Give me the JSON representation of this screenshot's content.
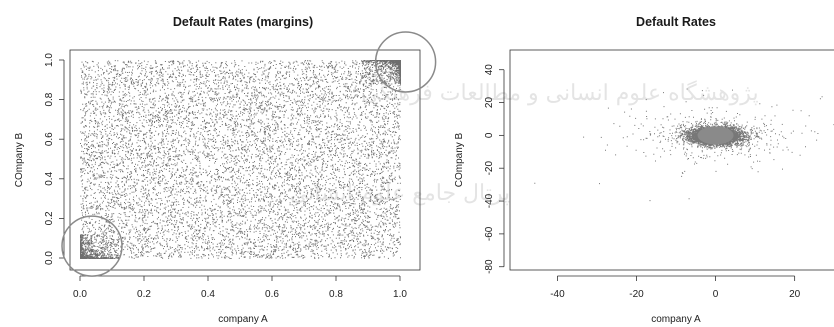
{
  "watermark": {
    "lines": [
      "پژوهشگاه علوم انسانی و مطالعات فرهنگی",
      "پرتال جامع علوم انسانی"
    ]
  },
  "chart_data": [
    {
      "type": "scatter",
      "title": "Default Rates (margins)",
      "xlabel": "company A",
      "ylabel": "COmpany B",
      "xlim": [
        0.0,
        1.0
      ],
      "ylim": [
        0.0,
        1.0
      ],
      "xticks": [
        0.0,
        0.2,
        0.4,
        0.6,
        0.8,
        1.0
      ],
      "yticks": [
        0.0,
        0.2,
        0.4,
        0.6,
        0.8,
        1.0
      ],
      "xtick_labels": [
        "0.0",
        "0.2",
        "0.4",
        "0.6",
        "0.8",
        "1.0"
      ],
      "ytick_labels": [
        "0.0",
        "0.2",
        "0.4",
        "0.6",
        "0.8",
        "1.0"
      ],
      "distribution": "uniform over the unit square with denser corners at (0,0) and (1,1)",
      "highlight_circles": [
        {
          "center": [
            0.0,
            0.05
          ],
          "note": "lower-left cluster"
        },
        {
          "center": [
            0.98,
            0.98
          ],
          "note": "upper-right cluster"
        }
      ],
      "point_color": "#555555",
      "grid": false
    },
    {
      "type": "scatter",
      "title": "Default Rates",
      "xlabel": "company A",
      "ylabel": "COmpany B",
      "xlim": [
        -52,
        34
      ],
      "ylim": [
        -82,
        52
      ],
      "xticks": [
        -40,
        -20,
        0,
        20
      ],
      "yticks": [
        40,
        20,
        0,
        -20,
        -40,
        -60,
        -80
      ],
      "xtick_labels": [
        "-40",
        "-20",
        "0",
        "20"
      ],
      "ytick_labels": [
        "40",
        "20",
        "0",
        "-20",
        "-40",
        "-60",
        "-80"
      ],
      "distribution": "dense elliptical cluster centered near (0, 0), spread roughly -8..8 in x and -6..6 in y, with sparse outliers",
      "center": [
        0,
        0
      ],
      "point_color": "#777777",
      "grid": false
    }
  ]
}
